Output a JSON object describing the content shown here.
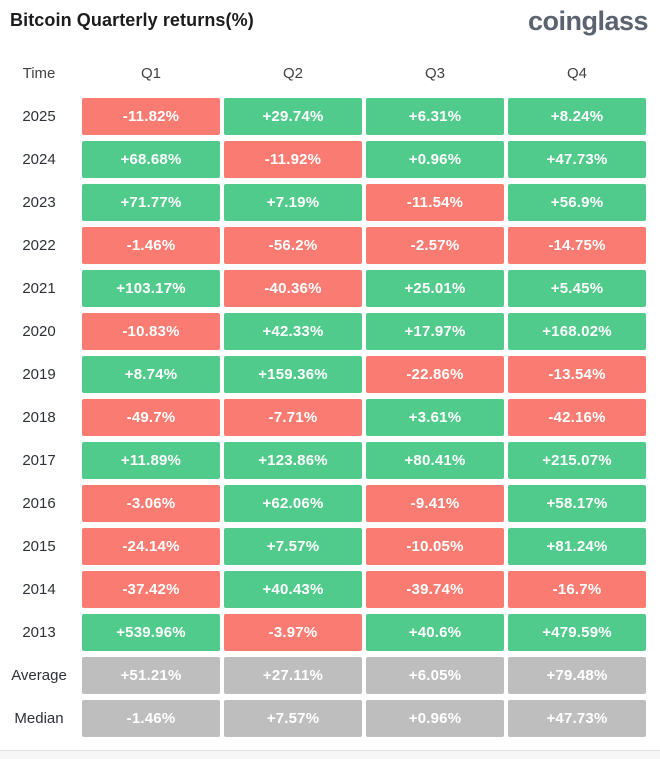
{
  "page": {
    "title": "Bitcoin Quarterly returns(%)",
    "logo": "coinglass"
  },
  "colors": {
    "positive": "#51CB8C",
    "negative": "#F97B71",
    "neutral": "#BEBEBE",
    "cell_text": "#FFFFFF",
    "label_text": "#2E3138",
    "header_text": "#424242",
    "title_text": "#1C1C1E",
    "logo_text": "#5B6370"
  },
  "chart_data": {
    "type": "table",
    "title": "Bitcoin Quarterly returns(%)",
    "columns": [
      "Time",
      "Q1",
      "Q2",
      "Q3",
      "Q4"
    ],
    "unit": "%",
    "legend": "green = positive quarterly return, red = negative quarterly return, gray = summary rows",
    "rows": [
      {
        "label": "2025",
        "neutral": false,
        "values": [
          -11.82,
          29.74,
          6.31,
          8.24
        ],
        "display": [
          "-11.82%",
          "+29.74%",
          "+6.31%",
          "+8.24%"
        ]
      },
      {
        "label": "2024",
        "neutral": false,
        "values": [
          68.68,
          -11.92,
          0.96,
          47.73
        ],
        "display": [
          "+68.68%",
          "-11.92%",
          "+0.96%",
          "+47.73%"
        ]
      },
      {
        "label": "2023",
        "neutral": false,
        "values": [
          71.77,
          7.19,
          -11.54,
          56.9
        ],
        "display": [
          "+71.77%",
          "+7.19%",
          "-11.54%",
          "+56.9%"
        ]
      },
      {
        "label": "2022",
        "neutral": false,
        "values": [
          -1.46,
          -56.2,
          -2.57,
          -14.75
        ],
        "display": [
          "-1.46%",
          "-56.2%",
          "-2.57%",
          "-14.75%"
        ]
      },
      {
        "label": "2021",
        "neutral": false,
        "values": [
          103.17,
          -40.36,
          25.01,
          5.45
        ],
        "display": [
          "+103.17%",
          "-40.36%",
          "+25.01%",
          "+5.45%"
        ]
      },
      {
        "label": "2020",
        "neutral": false,
        "values": [
          -10.83,
          42.33,
          17.97,
          168.02
        ],
        "display": [
          "-10.83%",
          "+42.33%",
          "+17.97%",
          "+168.02%"
        ]
      },
      {
        "label": "2019",
        "neutral": false,
        "values": [
          8.74,
          159.36,
          -22.86,
          -13.54
        ],
        "display": [
          "+8.74%",
          "+159.36%",
          "-22.86%",
          "-13.54%"
        ]
      },
      {
        "label": "2018",
        "neutral": false,
        "values": [
          -49.7,
          -7.71,
          3.61,
          -42.16
        ],
        "display": [
          "-49.7%",
          "-7.71%",
          "+3.61%",
          "-42.16%"
        ]
      },
      {
        "label": "2017",
        "neutral": false,
        "values": [
          11.89,
          123.86,
          80.41,
          215.07
        ],
        "display": [
          "+11.89%",
          "+123.86%",
          "+80.41%",
          "+215.07%"
        ]
      },
      {
        "label": "2016",
        "neutral": false,
        "values": [
          -3.06,
          62.06,
          -9.41,
          58.17
        ],
        "display": [
          "-3.06%",
          "+62.06%",
          "-9.41%",
          "+58.17%"
        ]
      },
      {
        "label": "2015",
        "neutral": false,
        "values": [
          -24.14,
          7.57,
          -10.05,
          81.24
        ],
        "display": [
          "-24.14%",
          "+7.57%",
          "-10.05%",
          "+81.24%"
        ]
      },
      {
        "label": "2014",
        "neutral": false,
        "values": [
          -37.42,
          40.43,
          -39.74,
          -16.7
        ],
        "display": [
          "-37.42%",
          "+40.43%",
          "-39.74%",
          "-16.7%"
        ]
      },
      {
        "label": "2013",
        "neutral": false,
        "values": [
          539.96,
          -3.97,
          40.6,
          479.59
        ],
        "display": [
          "+539.96%",
          "-3.97%",
          "+40.6%",
          "+479.59%"
        ]
      },
      {
        "label": "Average",
        "neutral": true,
        "values": [
          51.21,
          27.11,
          6.05,
          79.48
        ],
        "display": [
          "+51.21%",
          "+27.11%",
          "+6.05%",
          "+79.48%"
        ]
      },
      {
        "label": "Median",
        "neutral": true,
        "values": [
          -1.46,
          7.57,
          0.96,
          47.73
        ],
        "display": [
          "-1.46%",
          "+7.57%",
          "+0.96%",
          "+47.73%"
        ]
      }
    ]
  }
}
